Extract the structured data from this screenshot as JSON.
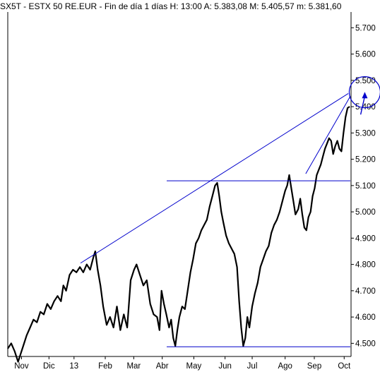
{
  "header": {
    "text": "SX5T - ESTX 50 RE.EUR - Fin de día 1 días H: 13:00 A: 5.383,08 M: 5.405,57 m: 5.381,60"
  },
  "chart_data": {
    "type": "line",
    "title": "SX5T - ESTX 50 RE.EUR - Fin de día 1 días H: 13:00 A: 5.383,08 M: 5.405,57 m: 5.381,60",
    "xlabel": "",
    "ylabel": "",
    "ylim": [
      4450,
      5760
    ],
    "grid": false,
    "y_ticks": [
      "4.500",
      "4.600",
      "4.700",
      "4.800",
      "4.900",
      "5.000",
      "5.100",
      "5.200",
      "5.300",
      "5.400",
      "5.500",
      "5.600",
      "5.700"
    ],
    "y_tick_values": [
      4500,
      4600,
      4700,
      4800,
      4900,
      5000,
      5100,
      5200,
      5300,
      5400,
      5500,
      5600,
      5700
    ],
    "x_ticks": [
      {
        "label": "Nov",
        "t": 0.04
      },
      {
        "label": "Dic",
        "t": 0.12
      },
      {
        "label": "13",
        "t": 0.193
      },
      {
        "label": "Feb",
        "t": 0.284
      },
      {
        "label": "Mar",
        "t": 0.367
      },
      {
        "label": "Abr",
        "t": 0.45
      },
      {
        "label": "May",
        "t": 0.542
      },
      {
        "label": "Jun",
        "t": 0.633
      },
      {
        "label": "Jul",
        "t": 0.712
      },
      {
        "label": "Ago",
        "t": 0.808
      },
      {
        "label": "Sep",
        "t": 0.893
      },
      {
        "label": "Oct",
        "t": 0.98
      }
    ],
    "series": [
      {
        "color": "#000000",
        "points": [
          [
            0.0,
            4480
          ],
          [
            0.01,
            4500
          ],
          [
            0.02,
            4470
          ],
          [
            0.03,
            4430
          ],
          [
            0.045,
            4490
          ],
          [
            0.055,
            4530
          ],
          [
            0.065,
            4560
          ],
          [
            0.075,
            4590
          ],
          [
            0.085,
            4580
          ],
          [
            0.095,
            4620
          ],
          [
            0.105,
            4610
          ],
          [
            0.115,
            4650
          ],
          [
            0.125,
            4630
          ],
          [
            0.135,
            4660
          ],
          [
            0.145,
            4680
          ],
          [
            0.155,
            4660
          ],
          [
            0.162,
            4720
          ],
          [
            0.17,
            4700
          ],
          [
            0.18,
            4760
          ],
          [
            0.19,
            4780
          ],
          [
            0.2,
            4770
          ],
          [
            0.21,
            4790
          ],
          [
            0.22,
            4770
          ],
          [
            0.23,
            4800
          ],
          [
            0.24,
            4780
          ],
          [
            0.25,
            4830
          ],
          [
            0.255,
            4850
          ],
          [
            0.262,
            4780
          ],
          [
            0.27,
            4720
          ],
          [
            0.278,
            4640
          ],
          [
            0.288,
            4570
          ],
          [
            0.298,
            4600
          ],
          [
            0.308,
            4560
          ],
          [
            0.318,
            4640
          ],
          [
            0.328,
            4550
          ],
          [
            0.338,
            4610
          ],
          [
            0.348,
            4560
          ],
          [
            0.358,
            4740
          ],
          [
            0.368,
            4780
          ],
          [
            0.375,
            4800
          ],
          [
            0.385,
            4760
          ],
          [
            0.395,
            4720
          ],
          [
            0.405,
            4740
          ],
          [
            0.415,
            4650
          ],
          [
            0.425,
            4610
          ],
          [
            0.435,
            4600
          ],
          [
            0.442,
            4550
          ],
          [
            0.448,
            4700
          ],
          [
            0.455,
            4650
          ],
          [
            0.462,
            4610
          ],
          [
            0.47,
            4560
          ],
          [
            0.476,
            4590
          ],
          [
            0.482,
            4520
          ],
          [
            0.488,
            4490
          ],
          [
            0.494,
            4550
          ],
          [
            0.5,
            4600
          ],
          [
            0.508,
            4640
          ],
          [
            0.516,
            4630
          ],
          [
            0.524,
            4700
          ],
          [
            0.532,
            4770
          ],
          [
            0.54,
            4820
          ],
          [
            0.548,
            4880
          ],
          [
            0.556,
            4900
          ],
          [
            0.564,
            4930
          ],
          [
            0.572,
            4950
          ],
          [
            0.58,
            4970
          ],
          [
            0.588,
            5020
          ],
          [
            0.596,
            5060
          ],
          [
            0.604,
            5100
          ],
          [
            0.61,
            5110
          ],
          [
            0.616,
            5060
          ],
          [
            0.622,
            5000
          ],
          [
            0.628,
            4960
          ],
          [
            0.636,
            4910
          ],
          [
            0.644,
            4880
          ],
          [
            0.652,
            4860
          ],
          [
            0.66,
            4840
          ],
          [
            0.668,
            4790
          ],
          [
            0.674,
            4660
          ],
          [
            0.68,
            4560
          ],
          [
            0.686,
            4490
          ],
          [
            0.692,
            4520
          ],
          [
            0.698,
            4600
          ],
          [
            0.704,
            4560
          ],
          [
            0.712,
            4640
          ],
          [
            0.72,
            4690
          ],
          [
            0.728,
            4730
          ],
          [
            0.736,
            4790
          ],
          [
            0.744,
            4820
          ],
          [
            0.752,
            4850
          ],
          [
            0.76,
            4870
          ],
          [
            0.768,
            4920
          ],
          [
            0.776,
            4950
          ],
          [
            0.784,
            4970
          ],
          [
            0.792,
            5000
          ],
          [
            0.8,
            5040
          ],
          [
            0.808,
            5080
          ],
          [
            0.814,
            5100
          ],
          [
            0.82,
            5140
          ],
          [
            0.826,
            5090
          ],
          [
            0.832,
            5040
          ],
          [
            0.838,
            4990
          ],
          [
            0.846,
            5010
          ],
          [
            0.852,
            5050
          ],
          [
            0.858,
            4990
          ],
          [
            0.864,
            4940
          ],
          [
            0.87,
            4930
          ],
          [
            0.876,
            4980
          ],
          [
            0.882,
            5000
          ],
          [
            0.888,
            5060
          ],
          [
            0.894,
            5090
          ],
          [
            0.9,
            5140
          ],
          [
            0.906,
            5160
          ],
          [
            0.912,
            5180
          ],
          [
            0.918,
            5210
          ],
          [
            0.924,
            5240
          ],
          [
            0.93,
            5260
          ],
          [
            0.936,
            5280
          ],
          [
            0.942,
            5270
          ],
          [
            0.948,
            5220
          ],
          [
            0.954,
            5250
          ],
          [
            0.96,
            5270
          ],
          [
            0.966,
            5240
          ],
          [
            0.972,
            5230
          ],
          [
            0.978,
            5300
          ],
          [
            0.984,
            5360
          ],
          [
            0.99,
            5395
          ],
          [
            0.996,
            5400
          ]
        ]
      }
    ],
    "annotations": {
      "color": "#0000cc",
      "lines": [
        {
          "x1": 0.212,
          "y1": 4805,
          "x2": 0.992,
          "y2": 5450
        },
        {
          "x1": 0.463,
          "y1": 5118,
          "x2": 0.998,
          "y2": 5118
        },
        {
          "x1": 0.463,
          "y1": 4487,
          "x2": 0.998,
          "y2": 4487
        },
        {
          "x1": 0.868,
          "y1": 5145,
          "x2": 0.998,
          "y2": 5440
        }
      ],
      "circle": {
        "cx": 1.04,
        "cy": 5455,
        "r": 22
      },
      "arrow": {
        "x1": 1.028,
        "y1": 5370,
        "x2": 1.04,
        "y2": 5456
      }
    }
  }
}
